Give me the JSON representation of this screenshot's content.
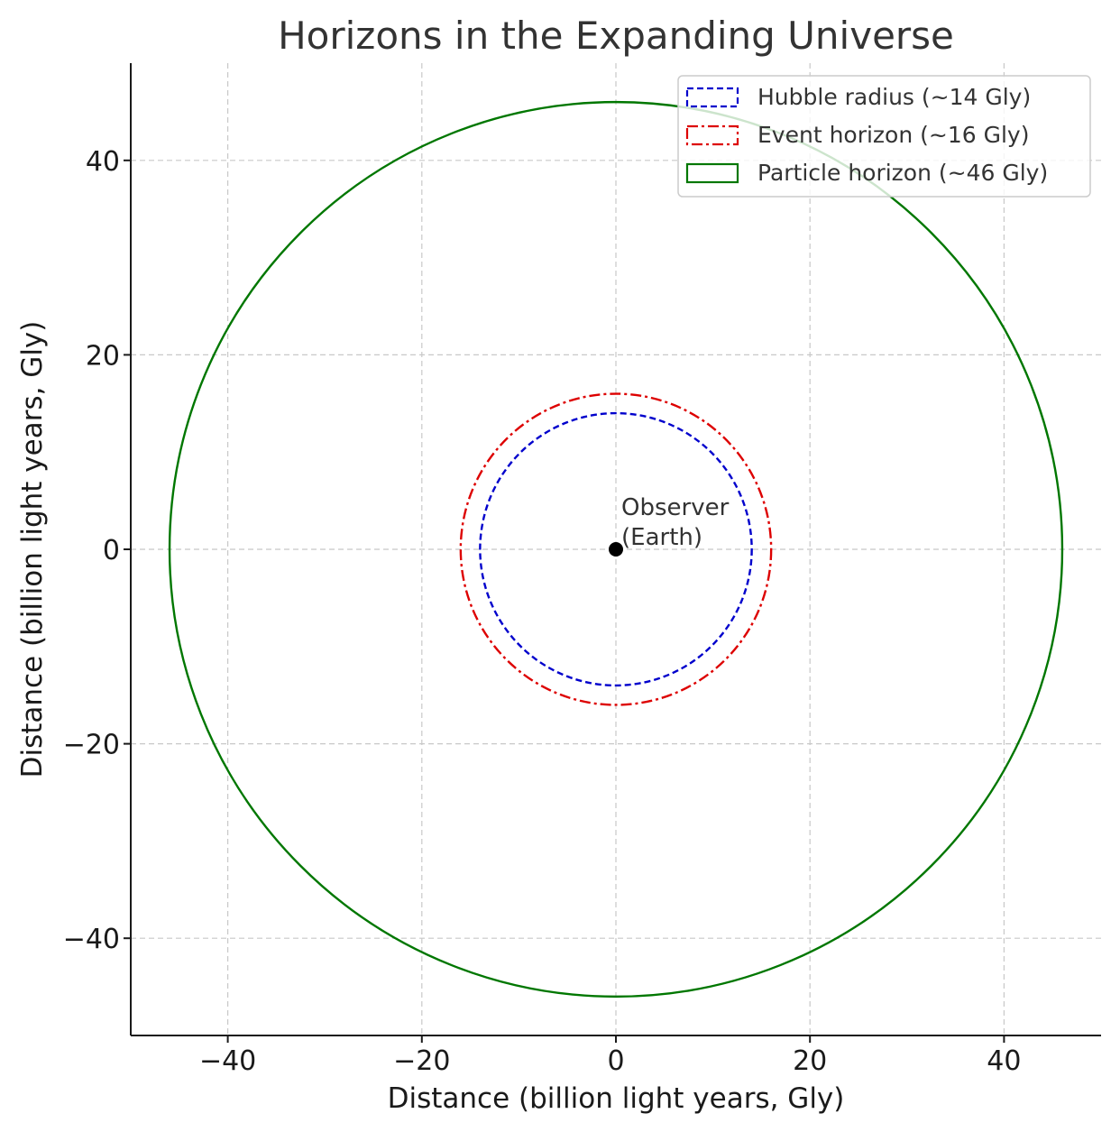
{
  "chart_data": {
    "type": "line",
    "title": "Horizons in the Expanding Universe",
    "xlabel": "Distance (billion light years, Gly)",
    "ylabel": "Distance (billion light years, Gly)",
    "xlim": [
      -50,
      50
    ],
    "ylim": [
      -50,
      50
    ],
    "x_ticks": [
      -40,
      -20,
      0,
      20,
      40
    ],
    "y_ticks": [
      -40,
      -20,
      0,
      20,
      40
    ],
    "x_tick_labels": [
      "−40",
      "−20",
      "0",
      "20",
      "40"
    ],
    "y_tick_labels": [
      "−40",
      "−20",
      "0",
      "20",
      "40"
    ],
    "grid": true,
    "legend_position": "top-right",
    "series": [
      {
        "name": "Hubble radius (~14 Gly)",
        "shape": "circle",
        "center": [
          0,
          0
        ],
        "radius": 14,
        "color": "#0000cc",
        "style": "dashed"
      },
      {
        "name": "Event horizon (~16 Gly)",
        "shape": "circle",
        "center": [
          0,
          0
        ],
        "radius": 16,
        "color": "#dd0000",
        "style": "dashdot"
      },
      {
        "name": "Particle horizon (~46 Gly)",
        "shape": "circle",
        "center": [
          0,
          0
        ],
        "radius": 46,
        "color": "#007700",
        "style": "solid"
      }
    ],
    "points": [
      {
        "x": 0,
        "y": 0,
        "color": "#000000"
      }
    ],
    "annotations": [
      {
        "x": 0,
        "y": 0,
        "lines": [
          "Observer",
          "(Earth)"
        ]
      }
    ]
  }
}
